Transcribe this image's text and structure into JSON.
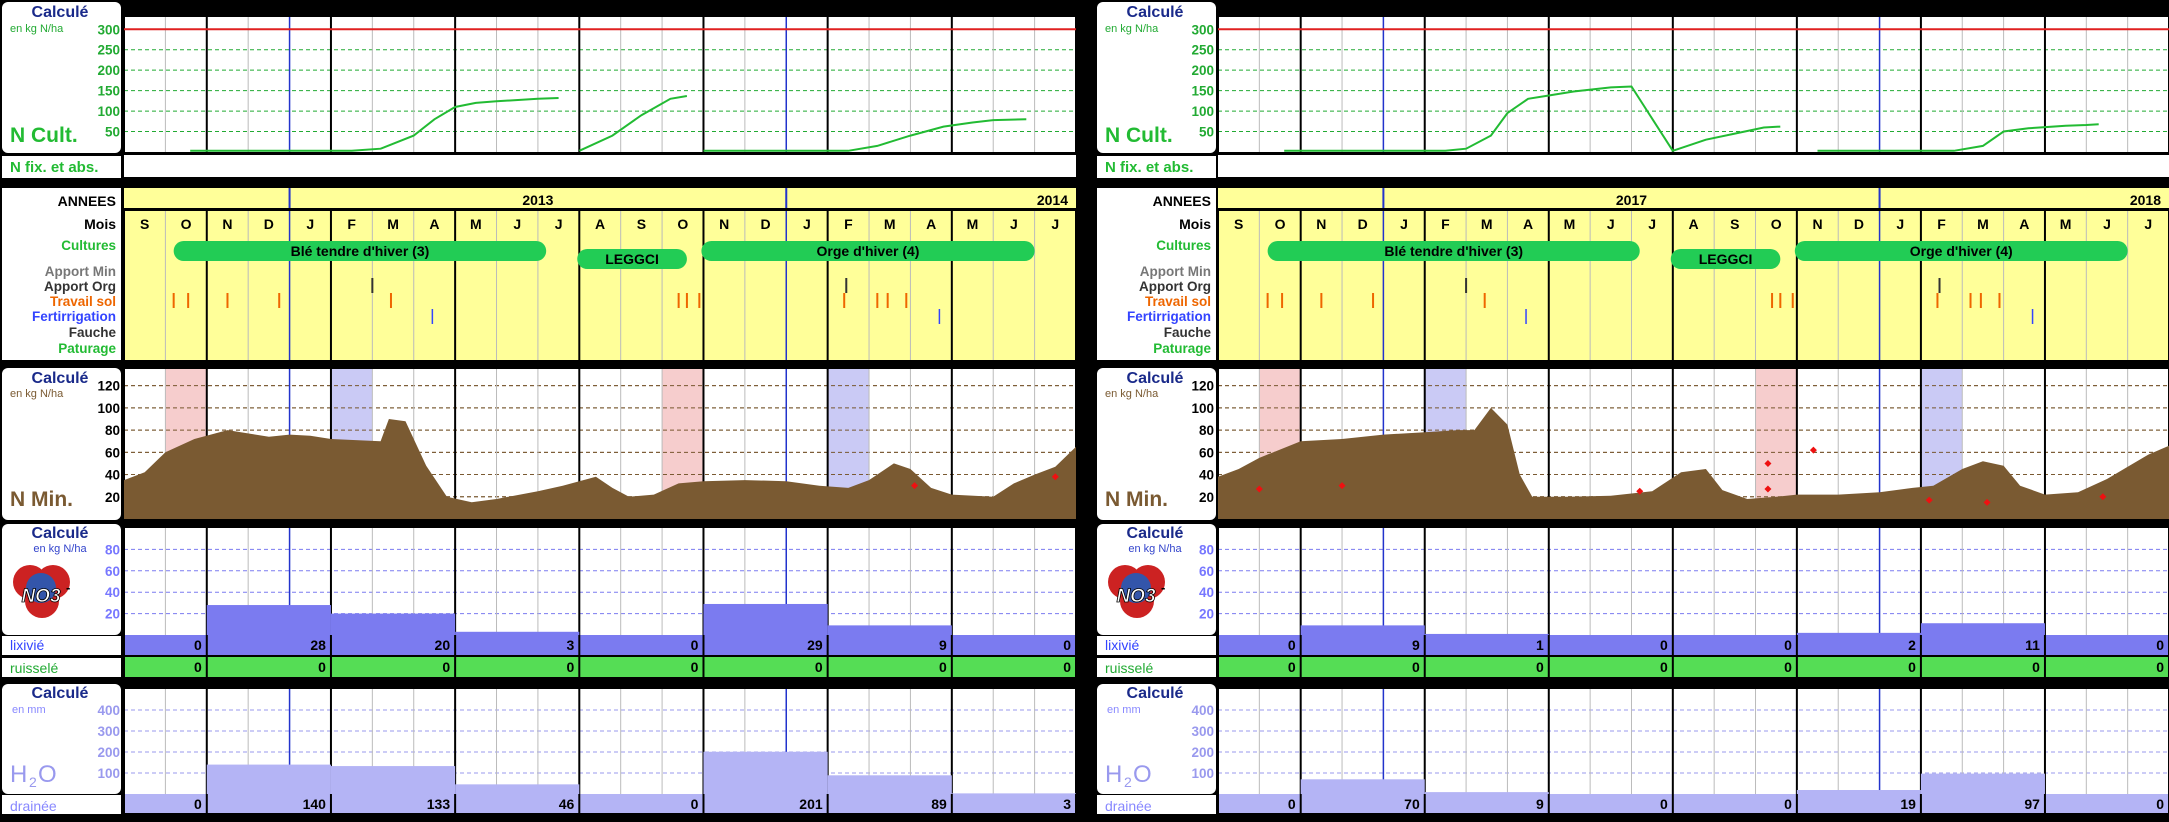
{
  "labels": {
    "calc": "Calculé",
    "unit_kg": "en kg N/ha",
    "unit_mm": "en mm",
    "ncult": "N Cult.",
    "nfix": "N fix. et abs.",
    "annees": "ANNEES",
    "mois": "Mois",
    "cultures": "Cultures",
    "apport_min": "Apport Min",
    "apport_org": "Apport Org",
    "travail_sol": "Travail sol",
    "fertirrigation": "Fertirrigation",
    "fauche": "Fauche",
    "paturage": "Paturage",
    "nmin": "N Min.",
    "no3": "NO3",
    "no3_sup": "-",
    "lixivie": "lixivié",
    "ruissele": "ruisselé",
    "h2o_h": "H",
    "h2o_2": "2",
    "h2o_o": "O",
    "drainee": "drainée"
  },
  "colors": {
    "nmin_fill": "#7a5a32",
    "ncult_line": "#22bb33",
    "ref_line": "#e02020",
    "lix_bar": "#7b7bf0",
    "h2o_bar": "#b4b4f5",
    "ruis_bg": "#55dd55",
    "timeline_bg": "#ffff99",
    "crop_pill": "#22cc55"
  },
  "months": [
    "S",
    "O",
    "N",
    "D",
    "J",
    "F",
    "M",
    "A",
    "M",
    "J",
    "J",
    "A",
    "S",
    "O",
    "N",
    "D",
    "J",
    "F",
    "M",
    "A",
    "M",
    "J",
    "J"
  ],
  "chart_data": [
    {
      "type": "area",
      "panel": "left",
      "years": [
        "2013",
        "2014"
      ],
      "crops": [
        "Blé tendre d'hiver (3)",
        "LEGGCI",
        "Orge d'hiver (4)"
      ],
      "ncult": {
        "ylim": [
          0,
          330
        ],
        "yticks": [
          50,
          100,
          150,
          200,
          250,
          300
        ],
        "ref_line": 300,
        "points": [
          [
            1.6,
            3
          ],
          [
            3.0,
            3
          ],
          [
            4.0,
            3
          ],
          [
            5.5,
            3
          ],
          [
            6.2,
            8
          ],
          [
            7.0,
            40
          ],
          [
            7.5,
            80
          ],
          [
            8.0,
            110
          ],
          [
            8.5,
            120
          ],
          [
            9.0,
            124
          ],
          [
            10.0,
            130
          ],
          [
            10.5,
            132
          ],
          [
            11.0,
            3
          ],
          [
            11.8,
            40
          ],
          [
            12.5,
            90
          ],
          [
            13.2,
            130
          ],
          [
            13.6,
            137
          ],
          [
            14.0,
            3
          ],
          [
            16.0,
            3
          ],
          [
            17.5,
            3
          ],
          [
            18.2,
            15
          ],
          [
            19.0,
            40
          ],
          [
            19.8,
            62
          ],
          [
            20.5,
            72
          ],
          [
            21.0,
            78
          ],
          [
            21.8,
            80
          ]
        ]
      },
      "nmin": {
        "ylim": [
          0,
          135
        ],
        "yticks": [
          20,
          40,
          60,
          80,
          100,
          120
        ],
        "shades": [
          {
            "start": 1,
            "end": 2,
            "color": "pink"
          },
          {
            "start": 5,
            "end": 6,
            "color": "blue"
          },
          {
            "start": 13,
            "end": 14,
            "color": "pink"
          },
          {
            "start": 17,
            "end": 18,
            "color": "blue"
          }
        ],
        "points": [
          [
            0,
            35
          ],
          [
            0.5,
            42
          ],
          [
            1,
            60
          ],
          [
            1.7,
            72
          ],
          [
            2.5,
            80
          ],
          [
            3.5,
            74
          ],
          [
            4,
            76
          ],
          [
            4.5,
            75
          ],
          [
            5,
            72
          ],
          [
            6.2,
            70
          ],
          [
            6.4,
            90
          ],
          [
            6.8,
            88
          ],
          [
            7.3,
            48
          ],
          [
            7.8,
            20
          ],
          [
            8.4,
            15
          ],
          [
            9,
            18
          ],
          [
            10,
            25
          ],
          [
            10.6,
            30
          ],
          [
            11.4,
            38
          ],
          [
            11.8,
            28
          ],
          [
            12.2,
            20
          ],
          [
            12.8,
            22
          ],
          [
            13.4,
            32
          ],
          [
            14,
            34
          ],
          [
            15,
            35
          ],
          [
            16,
            34
          ],
          [
            16.8,
            30
          ],
          [
            17.5,
            28
          ],
          [
            18,
            35
          ],
          [
            18.6,
            50
          ],
          [
            19,
            45
          ],
          [
            19.5,
            28
          ],
          [
            20,
            22
          ],
          [
            21,
            20
          ],
          [
            21.5,
            32
          ],
          [
            22,
            40
          ],
          [
            22.5,
            47
          ],
          [
            23,
            65
          ]
        ],
        "markers": [
          [
            19.1,
            30
          ],
          [
            22.5,
            38
          ]
        ]
      },
      "lixivie": [
        0,
        28,
        20,
        3,
        0,
        29,
        9,
        0
      ],
      "ruissele": [
        0,
        0,
        0,
        0,
        0,
        0,
        0,
        0
      ],
      "lix_ylim": [
        0,
        100
      ],
      "lix_yticks": [
        20,
        40,
        60,
        80
      ],
      "drainee": [
        0,
        140,
        133,
        46,
        0,
        201,
        89,
        3
      ],
      "h2o_ylim": [
        0,
        500
      ],
      "h2o_yticks": [
        100,
        200,
        300,
        400
      ]
    },
    {
      "type": "area",
      "panel": "right",
      "years": [
        "2017",
        "2018"
      ],
      "crops": [
        "Blé tendre d'hiver (3)",
        "LEGGCI",
        "Orge d'hiver (4)"
      ],
      "ncult": {
        "ylim": [
          0,
          330
        ],
        "yticks": [
          50,
          100,
          150,
          200,
          250,
          300
        ],
        "ref_line": 300,
        "points": [
          [
            1.6,
            3
          ],
          [
            3.0,
            3
          ],
          [
            4.0,
            3
          ],
          [
            5.5,
            3
          ],
          [
            6.0,
            8
          ],
          [
            6.6,
            40
          ],
          [
            7.0,
            95
          ],
          [
            7.5,
            130
          ],
          [
            8.0,
            138
          ],
          [
            8.6,
            148
          ],
          [
            9.5,
            158
          ],
          [
            10.0,
            160
          ],
          [
            11.0,
            3
          ],
          [
            11.8,
            30
          ],
          [
            12.5,
            45
          ],
          [
            13.2,
            60
          ],
          [
            13.6,
            62
          ],
          [
            14.5,
            3
          ],
          [
            16.0,
            3
          ],
          [
            17.8,
            3
          ],
          [
            18.5,
            15
          ],
          [
            19.0,
            50
          ],
          [
            19.6,
            58
          ],
          [
            20.5,
            64
          ],
          [
            21.0,
            66
          ],
          [
            21.3,
            68
          ]
        ]
      },
      "nmin": {
        "ylim": [
          0,
          135
        ],
        "yticks": [
          20,
          40,
          60,
          80,
          100,
          120
        ],
        "shades": [
          {
            "start": 1,
            "end": 2,
            "color": "pink"
          },
          {
            "start": 5,
            "end": 6,
            "color": "blue"
          },
          {
            "start": 13,
            "end": 14,
            "color": "pink"
          },
          {
            "start": 17,
            "end": 18,
            "color": "blue"
          }
        ],
        "points": [
          [
            0,
            38
          ],
          [
            0.5,
            45
          ],
          [
            1,
            55
          ],
          [
            2,
            70
          ],
          [
            3,
            72
          ],
          [
            4,
            76
          ],
          [
            5,
            78
          ],
          [
            5.8,
            80
          ],
          [
            6.2,
            80
          ],
          [
            6.6,
            100
          ],
          [
            7.0,
            85
          ],
          [
            7.3,
            40
          ],
          [
            7.6,
            20
          ],
          [
            8.5,
            20
          ],
          [
            9.5,
            21
          ],
          [
            10.5,
            25
          ],
          [
            11.2,
            42
          ],
          [
            11.8,
            45
          ],
          [
            12.2,
            26
          ],
          [
            12.8,
            18
          ],
          [
            13.5,
            20
          ],
          [
            14,
            22
          ],
          [
            15,
            22
          ],
          [
            16,
            24
          ],
          [
            16.8,
            28
          ],
          [
            17.3,
            30
          ],
          [
            18,
            45
          ],
          [
            18.5,
            52
          ],
          [
            19,
            48
          ],
          [
            19.4,
            30
          ],
          [
            20,
            22
          ],
          [
            20.8,
            24
          ],
          [
            21.5,
            36
          ],
          [
            22,
            47
          ],
          [
            22.5,
            58
          ],
          [
            23,
            66
          ]
        ],
        "markers": [
          [
            1,
            27
          ],
          [
            3,
            30
          ],
          [
            10.2,
            25
          ],
          [
            13.3,
            27
          ],
          [
            13.3,
            50
          ],
          [
            14.4,
            62
          ],
          [
            17.2,
            17
          ],
          [
            18.6,
            15
          ],
          [
            21.4,
            20
          ]
        ]
      },
      "lixivie": [
        0,
        9,
        1,
        0,
        0,
        2,
        11,
        0
      ],
      "ruissele": [
        0,
        0,
        0,
        0,
        0,
        0,
        0,
        0
      ],
      "lix_ylim": [
        0,
        100
      ],
      "lix_yticks": [
        20,
        40,
        60,
        80
      ],
      "drainee": [
        0,
        70,
        9,
        0,
        0,
        19,
        97,
        0
      ],
      "h2o_ylim": [
        0,
        500
      ],
      "h2o_yticks": [
        100,
        200,
        300,
        400
      ]
    }
  ]
}
